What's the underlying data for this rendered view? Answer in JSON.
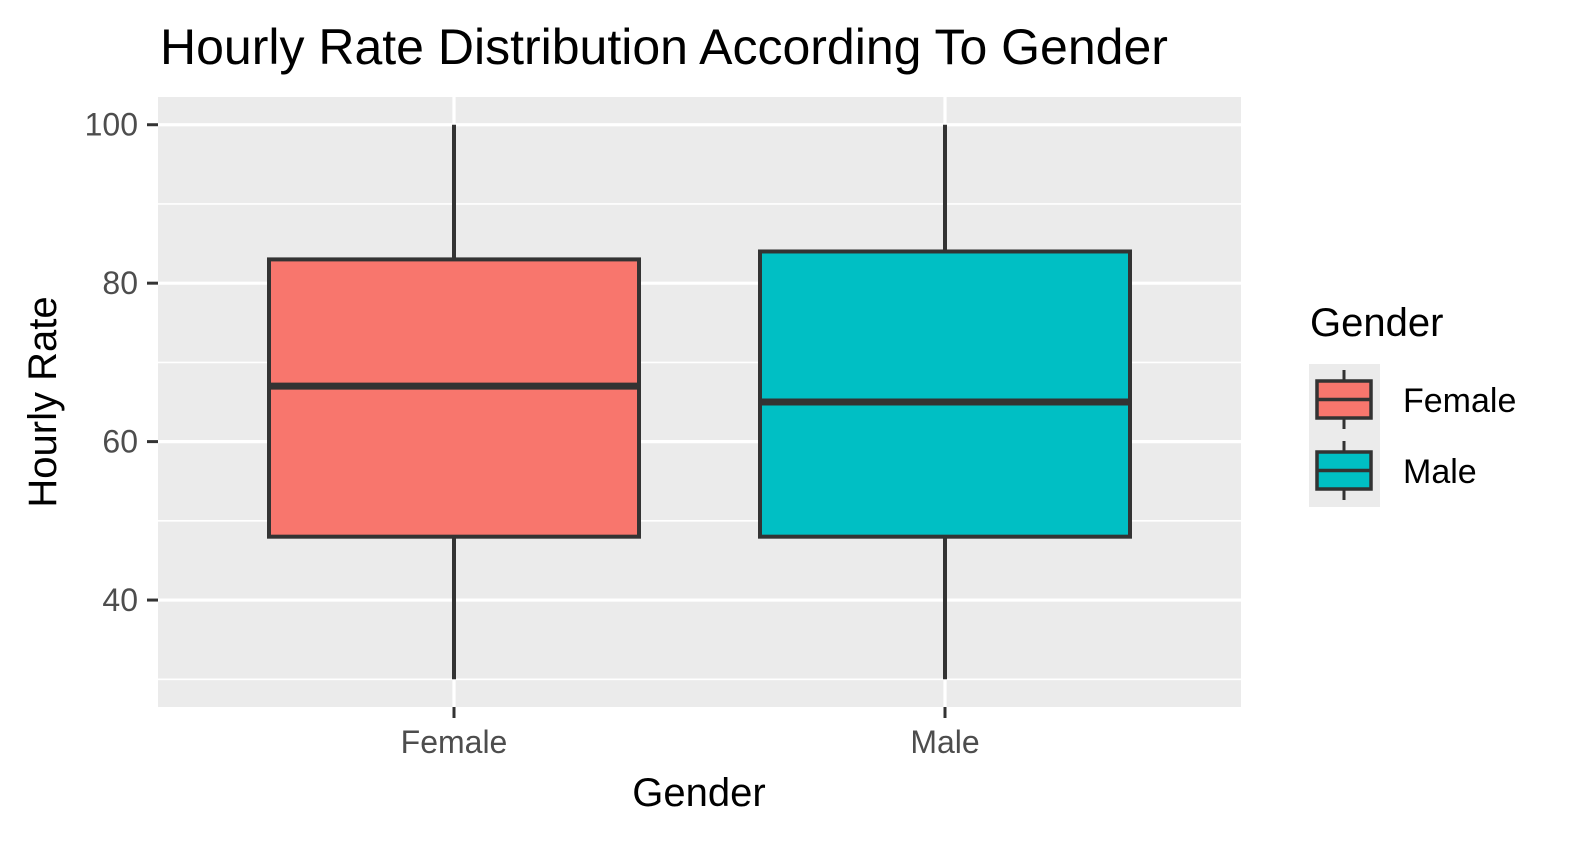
{
  "chart_data": {
    "type": "box",
    "title": "Hourly Rate Distribution According To Gender",
    "xlabel": "Gender",
    "ylabel": "Hourly Rate",
    "categories": [
      "Female",
      "Male"
    ],
    "ylim": [
      26.5,
      103.5
    ],
    "yticks": [
      40,
      60,
      80,
      100
    ],
    "yminor": [
      30,
      50,
      70,
      90
    ],
    "grid": true,
    "legend": {
      "title": "Gender",
      "placement": "right",
      "entries": [
        "Female",
        "Male"
      ]
    },
    "series": [
      {
        "name": "Female",
        "min": 30,
        "q1": 48,
        "median": 67,
        "q3": 83,
        "max": 100,
        "color": "#F8766D"
      },
      {
        "name": "Male",
        "min": 30,
        "q1": 48,
        "median": 65,
        "q3": 84,
        "max": 100,
        "color": "#00BFC4"
      }
    ],
    "colors": {
      "panel": "#EBEBEB",
      "grid": "#FFFFFF",
      "outline": "#333333",
      "tick_text": "#4D4D4D"
    }
  }
}
